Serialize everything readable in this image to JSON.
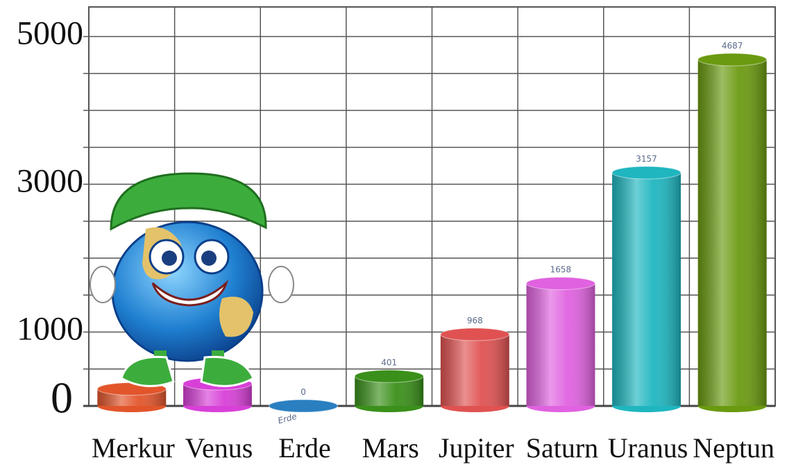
{
  "chart_data": {
    "type": "bar",
    "categories": [
      "Merkur",
      "Venus",
      "Erde",
      "Mars",
      "Jupiter",
      "Saturn",
      "Uranus",
      "Neptun"
    ],
    "values": [
      230,
      300,
      0,
      401,
      968,
      1658,
      3157,
      4687
    ],
    "value_labels": [
      null,
      null,
      "0",
      "401",
      "968",
      "1658",
      "3157",
      "4687"
    ],
    "colors": [
      "#e2552b",
      "#d840d8",
      "#2a7fc0",
      "#3a901a",
      "#e05252",
      "#e062e0",
      "#1fb6c0",
      "#6a9a10"
    ],
    "ylim": [
      0,
      5400
    ],
    "yticks": [
      0,
      1000,
      3000,
      5000
    ],
    "minor_yticks": [
      500,
      1500,
      2000,
      2500,
      3500,
      4000,
      4500
    ],
    "grid": true,
    "annotations": [
      {
        "text": "Erde",
        "category": 2
      }
    ]
  }
}
